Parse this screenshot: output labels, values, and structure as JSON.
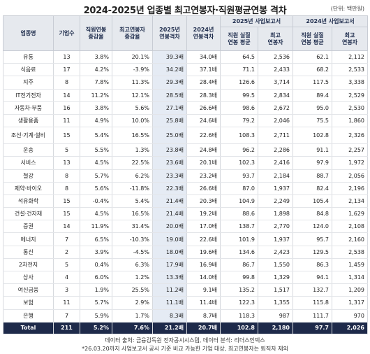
{
  "title": "2024-2025년 업종별 최고연봉자·직원평균연봉 격차",
  "unit": "(단위: 백만원)",
  "headers": {
    "industry": "업종명",
    "companies": "기업수",
    "emp_change": "직원연봉\n증감율",
    "top_change": "최고연봉자\n증감율",
    "gap2025": "2025년\n연봉격차",
    "gap2024": "2024년\n연봉격차",
    "report2025": "2025년 사업보고서",
    "report2024": "2024년 사업보고서",
    "emp_avg_2025": "직원 실질\n연봉 평균",
    "top_2025": "최고\n연봉자",
    "emp_avg_2024": "직원 실질\n연봉 평균",
    "top_2024": "최고\n연봉자"
  },
  "rows": [
    {
      "industry": "유통",
      "companies": "13",
      "emp_change": "3.8%",
      "top_change": "20.1%",
      "gap2025": "39.3배",
      "gap2024": "34.0배",
      "emp2025": "64.5",
      "top2025": "2,536",
      "emp2024": "62.1",
      "top2024": "2,112"
    },
    {
      "industry": "식음료",
      "companies": "17",
      "emp_change": "4.2%",
      "top_change": "-3.9%",
      "gap2025": "34.2배",
      "gap2024": "37.1배",
      "emp2025": "71.1",
      "top2025": "2,433",
      "emp2024": "68.2",
      "top2024": "2,533"
    },
    {
      "industry": "지주",
      "companies": "8",
      "emp_change": "7.8%",
      "top_change": "11.3%",
      "gap2025": "29.3배",
      "gap2024": "28.4배",
      "emp2025": "126.6",
      "top2025": "3,714",
      "emp2024": "117.5",
      "top2024": "3,338"
    },
    {
      "industry": "IT전기전자",
      "companies": "14",
      "emp_change": "11.2%",
      "top_change": "12.1%",
      "gap2025": "28.5배",
      "gap2024": "28.3배",
      "emp2025": "99.5",
      "top2025": "2,834",
      "emp2024": "89.4",
      "top2024": "2,529"
    },
    {
      "industry": "자동차·부품",
      "companies": "16",
      "emp_change": "3.8%",
      "top_change": "5.6%",
      "gap2025": "27.1배",
      "gap2024": "26.6배",
      "emp2025": "98.6",
      "top2025": "2,672",
      "emp2024": "95.0",
      "top2024": "2,530"
    },
    {
      "industry": "생활용품",
      "companies": "11",
      "emp_change": "4.9%",
      "top_change": "10.0%",
      "gap2025": "25.8배",
      "gap2024": "24.6배",
      "emp2025": "79.2",
      "top2025": "2,046",
      "emp2024": "75.5",
      "top2024": "1,860"
    },
    {
      "industry": "조선·기계·설비",
      "companies": "15",
      "emp_change": "5.4%",
      "top_change": "16.5%",
      "gap2025": "25.0배",
      "gap2024": "22.6배",
      "emp2025": "108.3",
      "top2025": "2,711",
      "emp2024": "102.8",
      "top2024": "2,326",
      "tall": true
    },
    {
      "industry": "운송",
      "companies": "5",
      "emp_change": "5.5%",
      "top_change": "1.3%",
      "gap2025": "23.8배",
      "gap2024": "24.8배",
      "emp2025": "96.2",
      "top2025": "2,286",
      "emp2024": "91.1",
      "top2024": "2,257"
    },
    {
      "industry": "서비스",
      "companies": "13",
      "emp_change": "4.5%",
      "top_change": "22.5%",
      "gap2025": "23.6배",
      "gap2024": "20.1배",
      "emp2025": "102.3",
      "top2025": "2,416",
      "emp2024": "97.9",
      "top2024": "1,972"
    },
    {
      "industry": "철강",
      "companies": "8",
      "emp_change": "5.7%",
      "top_change": "6.2%",
      "gap2025": "23.3배",
      "gap2024": "23.2배",
      "emp2025": "93.7",
      "top2025": "2,184",
      "emp2024": "88.7",
      "top2024": "2,056"
    },
    {
      "industry": "제약·바이오",
      "companies": "8",
      "emp_change": "5.6%",
      "top_change": "-11.8%",
      "gap2025": "22.3배",
      "gap2024": "26.6배",
      "emp2025": "87.0",
      "top2025": "1,937",
      "emp2024": "82.4",
      "top2024": "2,196"
    },
    {
      "industry": "석유화학",
      "companies": "15",
      "emp_change": "-0.4%",
      "top_change": "5.4%",
      "gap2025": "21.4배",
      "gap2024": "20.3배",
      "emp2025": "104.9",
      "top2025": "2,249",
      "emp2024": "105.4",
      "top2024": "2,134"
    },
    {
      "industry": "건설·건자재",
      "companies": "15",
      "emp_change": "4.5%",
      "top_change": "16.5%",
      "gap2025": "21.4배",
      "gap2024": "19.2배",
      "emp2025": "88.6",
      "top2025": "1,898",
      "emp2024": "84.8",
      "top2024": "1,629"
    },
    {
      "industry": "증권",
      "companies": "14",
      "emp_change": "11.9%",
      "top_change": "31.4%",
      "gap2025": "20.0배",
      "gap2024": "17.0배",
      "emp2025": "138.7",
      "top2025": "2,770",
      "emp2024": "124.0",
      "top2024": "2,108"
    },
    {
      "industry": "에너지",
      "companies": "7",
      "emp_change": "6.5%",
      "top_change": "-10.3%",
      "gap2025": "19.0배",
      "gap2024": "22.6배",
      "emp2025": "101.9",
      "top2025": "1,937",
      "emp2024": "95.7",
      "top2024": "2,160"
    },
    {
      "industry": "통신",
      "companies": "2",
      "emp_change": "3.9%",
      "top_change": "-4.5%",
      "gap2025": "18.0배",
      "gap2024": "19.6배",
      "emp2025": "134.6",
      "top2025": "2,423",
      "emp2024": "129.5",
      "top2024": "2,538"
    },
    {
      "industry": "2차전지",
      "companies": "5",
      "emp_change": "0.4%",
      "top_change": "6.3%",
      "gap2025": "17.9배",
      "gap2024": "16.9배",
      "emp2025": "86.7",
      "top2025": "1,550",
      "emp2024": "86.3",
      "top2024": "1,459"
    },
    {
      "industry": "상사",
      "companies": "4",
      "emp_change": "6.0%",
      "top_change": "1.2%",
      "gap2025": "13.3배",
      "gap2024": "14.0배",
      "emp2025": "99.8",
      "top2025": "1,329",
      "emp2024": "94.1",
      "top2024": "1,314"
    },
    {
      "industry": "여신금융",
      "companies": "3",
      "emp_change": "1.9%",
      "top_change": "25.5%",
      "gap2025": "11.2배",
      "gap2024": "9.1배",
      "emp2025": "135.2",
      "top2025": "1,517",
      "emp2024": "132.7",
      "top2024": "1,209"
    },
    {
      "industry": "보험",
      "companies": "11",
      "emp_change": "5.7%",
      "top_change": "2.9%",
      "gap2025": "11.1배",
      "gap2024": "11.4배",
      "emp2025": "122.3",
      "top2025": "1,355",
      "emp2024": "115.8",
      "top2024": "1,317"
    },
    {
      "industry": "은행",
      "companies": "7",
      "emp_change": "5.9%",
      "top_change": "1.7%",
      "gap2025": "8.3배",
      "gap2024": "8.7배",
      "emp2025": "118.3",
      "top2025": "987",
      "emp2024": "111.7",
      "top2024": "970"
    }
  ],
  "total": {
    "industry": "Total",
    "companies": "211",
    "emp_change": "5.2%",
    "top_change": "7.6%",
    "gap2025": "21.2배",
    "gap2024": "20.7배",
    "emp2025": "102.8",
    "top2025": "2,180",
    "emp2024": "97.7",
    "top2024": "2,026"
  },
  "footnotes": [
    "데이터 출처: 금융감독원 전자공시시스템, 데이터 분석: 리더스인덱스",
    "*26.03.20까지 사업보고서 공시 기준 비교 가능한 기업 대상, 최고연봉자는 퇴직자 제외"
  ]
}
